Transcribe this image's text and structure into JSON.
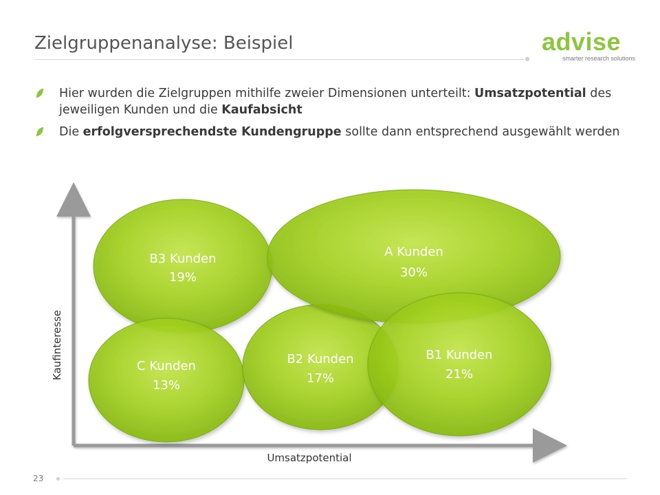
{
  "header": {
    "title": "Zielgruppenanalyse: Beispiel",
    "logo_text": "advise",
    "logo_tagline": "smarter research solutions"
  },
  "bullets": [
    {
      "parts": [
        {
          "text": "Hier wurden die Zielgruppen mithilfe zweier Dimensionen unterteilt: ",
          "bold": false
        },
        {
          "text": "Umsatzpotential",
          "bold": true
        },
        {
          "text": " des jeweiligen Kunden und die ",
          "bold": false
        },
        {
          "text": "Kaufabsicht",
          "bold": true
        }
      ]
    },
    {
      "parts": [
        {
          "text": "Die ",
          "bold": false
        },
        {
          "text": "erfolgversprechendste Kundengruppe",
          "bold": true
        },
        {
          "text": " sollte dann entsprechend ausgewählt werden",
          "bold": false
        }
      ]
    }
  ],
  "diagram": {
    "x_axis_label": "Umsatzpotential",
    "y_axis_label": "Kaufinteresse",
    "segments": [
      {
        "name": "B3 Kunden",
        "value": "19%"
      },
      {
        "name": "A Kunden",
        "value": "30%"
      },
      {
        "name": "C Kunden",
        "value": "13%"
      },
      {
        "name": "B2 Kunden",
        "value": "17%"
      },
      {
        "name": "B1 Kunden",
        "value": "21%"
      }
    ]
  },
  "footer": {
    "page_number": "23"
  },
  "colors": {
    "accent_green": "#8cc63f",
    "blob_green": "#9bd016"
  }
}
